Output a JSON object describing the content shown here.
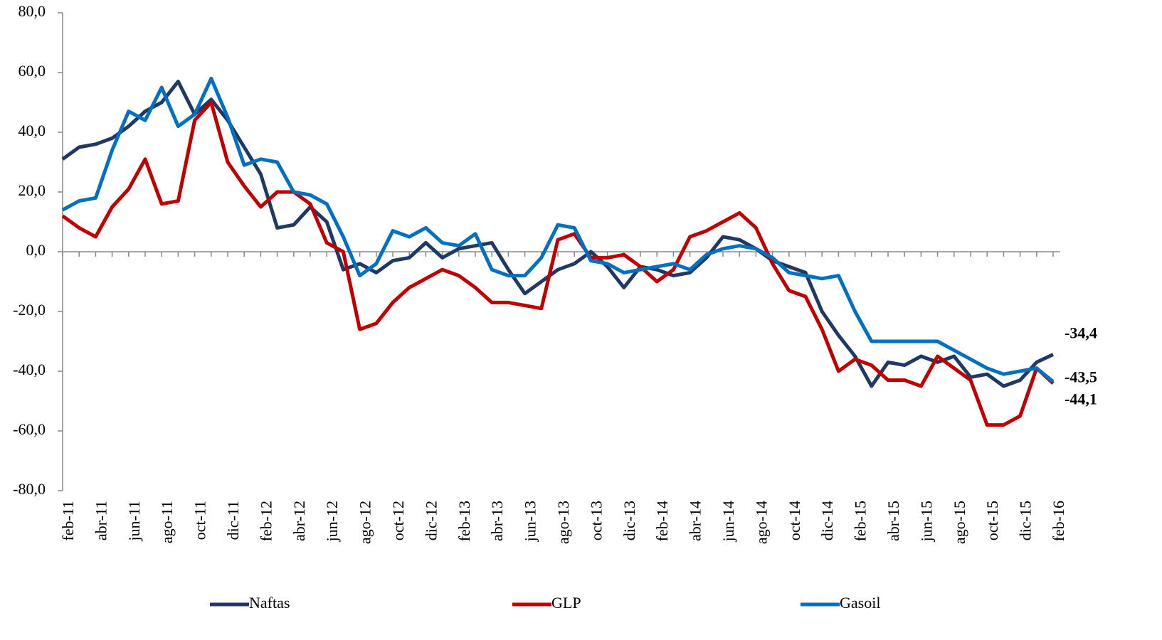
{
  "chart_data": {
    "type": "line",
    "categories": [
      "feb-11",
      null,
      "abr-11",
      null,
      "jun-11",
      null,
      "ago-11",
      null,
      "oct-11",
      null,
      "dic-11",
      null,
      "feb-12",
      null,
      "abr-12",
      null,
      "jun-12",
      null,
      "ago-12",
      null,
      "oct-12",
      null,
      "dic-12",
      null,
      "feb-13",
      null,
      "abr-13",
      null,
      "jun-13",
      null,
      "ago-13",
      null,
      "oct-13",
      null,
      "dic-13",
      null,
      "feb-14",
      null,
      "abr-14",
      null,
      "jun-14",
      null,
      "ago-14",
      null,
      "oct-14",
      null,
      "dic-14",
      null,
      "feb-15",
      null,
      "abr-15",
      null,
      "jun-15",
      null,
      "ago-15",
      null,
      "oct-15",
      null,
      "dic-15",
      null,
      "feb-16"
    ],
    "series": [
      {
        "name": "Naftas",
        "color": "#1f3864",
        "values": [
          31,
          35,
          36,
          38,
          42,
          47,
          50,
          57,
          46,
          51,
          44,
          35,
          26,
          8,
          9,
          15,
          10,
          -6,
          -4,
          -7,
          -3,
          -2,
          3,
          -2,
          1,
          2,
          3,
          -6,
          -14,
          -10,
          -6,
          -4,
          0,
          -5,
          -12,
          -5,
          -6,
          -8,
          -7,
          -2,
          5,
          4,
          1,
          -3,
          -5,
          -7,
          -20,
          -28,
          -35,
          -45,
          -37,
          -38,
          -35,
          -37,
          -35,
          -42,
          -41,
          -45,
          -43,
          -37,
          -34.4
        ],
        "value_labels": [
          null,
          null,
          null,
          null,
          null,
          null,
          null,
          null,
          null,
          null,
          null,
          null,
          null,
          null,
          null,
          null,
          null,
          null,
          null,
          null,
          null,
          null,
          null,
          null,
          null,
          null,
          null,
          null,
          null,
          null,
          null,
          null,
          null,
          null,
          null,
          null,
          null,
          null,
          null,
          null,
          null,
          null,
          null,
          null,
          null,
          null,
          null,
          null,
          null,
          null,
          null,
          null,
          null,
          null,
          null,
          null,
          null,
          null,
          null,
          null,
          "-34,4"
        ]
      },
      {
        "name": "GLP",
        "color": "#c00000",
        "values": [
          12,
          8,
          5,
          15,
          21,
          31,
          16,
          17,
          44,
          50,
          30,
          22,
          15,
          20,
          20,
          16,
          3,
          0,
          -26,
          -24,
          -17,
          -12,
          -9,
          -6,
          -8,
          -12,
          -17,
          -17,
          -18,
          -19,
          4,
          6,
          -2,
          -2,
          -1,
          -5,
          -10,
          -6,
          5,
          7,
          10,
          13,
          8,
          -4,
          -13,
          -15,
          -26,
          -40,
          -36,
          -38,
          -43,
          -43,
          -45,
          -35,
          -39,
          -43,
          -58,
          -58,
          -55,
          -39,
          -44.1
        ],
        "value_labels": [
          null,
          null,
          null,
          null,
          null,
          null,
          null,
          null,
          null,
          null,
          null,
          null,
          null,
          null,
          null,
          null,
          null,
          null,
          null,
          null,
          null,
          null,
          null,
          null,
          null,
          null,
          null,
          null,
          null,
          null,
          null,
          null,
          null,
          null,
          null,
          null,
          null,
          null,
          null,
          null,
          null,
          null,
          null,
          null,
          null,
          null,
          null,
          null,
          null,
          null,
          null,
          null,
          null,
          null,
          null,
          null,
          null,
          null,
          null,
          null,
          "-44,1"
        ]
      },
      {
        "name": "Gasoil",
        "color": "#0070c0",
        "values": [
          14,
          17,
          18,
          34,
          47,
          44,
          55,
          42,
          46,
          58,
          45,
          29,
          31,
          30,
          20,
          19,
          16,
          5,
          -8,
          -4,
          7,
          5,
          8,
          3,
          2,
          6,
          -6,
          -8,
          -8,
          -2,
          9,
          8,
          -3,
          -4,
          -7,
          -6,
          -5,
          -4,
          -6,
          -1,
          1,
          2,
          1,
          -2,
          -7,
          -8,
          -9,
          -8,
          -20,
          -30,
          -30,
          -30,
          -30,
          -30,
          -33,
          -36,
          -39,
          -41,
          -40,
          -39,
          -43.5
        ],
        "value_labels": [
          null,
          null,
          null,
          null,
          null,
          null,
          null,
          null,
          null,
          null,
          null,
          null,
          null,
          null,
          null,
          null,
          null,
          null,
          null,
          null,
          null,
          null,
          null,
          null,
          null,
          null,
          null,
          null,
          null,
          null,
          null,
          null,
          null,
          null,
          null,
          null,
          null,
          null,
          null,
          null,
          null,
          null,
          null,
          null,
          null,
          null,
          null,
          null,
          null,
          null,
          null,
          null,
          null,
          null,
          null,
          null,
          null,
          null,
          null,
          null,
          "-43,5"
        ]
      }
    ],
    "ylim": [
      -80,
      80
    ],
    "yticks": [
      {
        "value": -80,
        "label": "-80,0"
      },
      {
        "value": -60,
        "label": "-60,0"
      },
      {
        "value": -40,
        "label": "-40,0"
      },
      {
        "value": -20,
        "label": "-20,0"
      },
      {
        "value": 0,
        "label": "0,0"
      },
      {
        "value": 20,
        "label": "20,0"
      },
      {
        "value": 40,
        "label": "40,0"
      },
      {
        "value": 60,
        "label": "60,0"
      },
      {
        "value": 80,
        "label": "80,0"
      }
    ],
    "legend": "bottom"
  }
}
